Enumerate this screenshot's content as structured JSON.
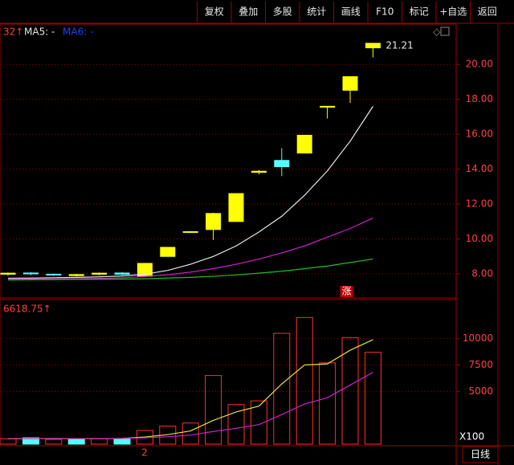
{
  "toolbar": {
    "buttons": [
      "复权",
      "叠加",
      "多股",
      "统计",
      "画线",
      "F10",
      "标记",
      "+自选",
      "返回"
    ]
  },
  "footer": {
    "period": "日线",
    "marker": "2"
  },
  "chart_data": [
    {
      "type": "candlestick",
      "indicator_text": "32↑",
      "up_color": "#ffff00",
      "down_color": "#54ffff",
      "categories": [
        null,
        null,
        null,
        null,
        null,
        null,
        null,
        null,
        null,
        null,
        null,
        null,
        null,
        null,
        null,
        null,
        null
      ],
      "open": [
        7.98,
        8.05,
        7.98,
        7.9,
        7.98,
        8.05,
        7.86,
        9.0,
        10.38,
        10.54,
        11.0,
        13.82,
        14.5,
        14.92,
        17.55,
        18.52,
        20.95
      ],
      "close": [
        8.04,
        8.0,
        7.94,
        7.96,
        8.04,
        7.98,
        8.6,
        9.52,
        10.42,
        11.46,
        12.6,
        13.88,
        14.14,
        15.94,
        17.6,
        19.3,
        21.21
      ],
      "high": [
        8.08,
        8.1,
        8.02,
        8.0,
        8.08,
        8.1,
        8.6,
        9.52,
        10.45,
        11.5,
        12.6,
        13.95,
        15.2,
        15.94,
        17.6,
        19.3,
        21.21
      ],
      "low": [
        7.9,
        7.92,
        7.88,
        7.86,
        7.92,
        7.92,
        7.86,
        9.0,
        10.35,
        9.94,
        11.0,
        13.7,
        13.6,
        14.92,
        16.9,
        17.8,
        20.4
      ],
      "series": [
        {
          "name": "MA5: -",
          "color": "#e8e8e8",
          "legend_color": "#e8e8e8",
          "values": [
            7.75,
            7.76,
            7.78,
            7.8,
            7.83,
            7.88,
            7.98,
            8.2,
            8.55,
            9.0,
            9.6,
            10.4,
            11.3,
            12.5,
            13.9,
            15.6,
            17.6
          ]
        },
        {
          "name": "MA6: -",
          "color": "#d020d0",
          "legend_color": "#2040ff",
          "values": [
            7.7,
            7.7,
            7.71,
            7.72,
            7.74,
            7.78,
            7.85,
            7.95,
            8.1,
            8.3,
            8.55,
            8.85,
            9.2,
            9.6,
            10.1,
            10.6,
            11.2
          ]
        },
        {
          "color": "#20c020",
          "values": [
            7.65,
            7.66,
            7.67,
            7.68,
            7.69,
            7.7,
            7.72,
            7.76,
            7.8,
            7.86,
            7.94,
            8.04,
            8.15,
            8.3,
            8.45,
            8.65,
            8.85
          ]
        }
      ],
      "last_price": 21.21,
      "annotation": "涨",
      "ylim": [
        6.62,
        22.31
      ],
      "yticks": [
        {
          "value": 8,
          "label": "8.00"
        },
        {
          "value": 10,
          "label": "10.00"
        },
        {
          "value": 12,
          "label": "12.00"
        },
        {
          "value": 14,
          "label": "14.00"
        },
        {
          "value": 16,
          "label": "16.00"
        },
        {
          "value": 18,
          "label": "18.00"
        },
        {
          "value": 20,
          "label": "20.00"
        }
      ],
      "grid": true
    },
    {
      "type": "volume",
      "indicator_text": "6618.75↑",
      "unit_label": "X100",
      "categories": [
        null,
        null,
        null,
        null,
        null,
        null,
        null,
        null,
        null,
        null,
        null,
        null,
        null,
        null,
        null,
        null,
        null
      ],
      "values": [
        500,
        600,
        450,
        450,
        500,
        500,
        1300,
        1700,
        2000,
        6500,
        3750,
        4100,
        10500,
        12000,
        7700,
        10100,
        8700
      ],
      "colors": [
        "#ff3030",
        "#54ffff",
        "#ff3030",
        "#54ffff",
        "#ff3030",
        "#54ffff",
        "#ff3030",
        "#ff3030",
        "#ff3030",
        "#ff3030",
        "#ff3030",
        "#ff3030",
        "#ff3030",
        "#ff3030",
        "#ff3030",
        "#ff3030",
        "#ff3030"
      ],
      "series": [
        {
          "color": "#e8e040",
          "values": [
            500,
            520,
            530,
            520,
            510,
            540,
            680,
            900,
            1250,
            2250,
            3050,
            3600,
            5700,
            7500,
            7600,
            8900,
            9900
          ]
        },
        {
          "color": "#d020d0",
          "values": [
            520,
            520,
            520,
            520,
            520,
            530,
            600,
            700,
            850,
            1200,
            1500,
            1850,
            2800,
            3800,
            4400,
            5600,
            6800
          ]
        }
      ],
      "ylim": [
        0,
        13700
      ],
      "yticks": [
        5000,
        7500,
        10000
      ],
      "grid": true
    }
  ]
}
